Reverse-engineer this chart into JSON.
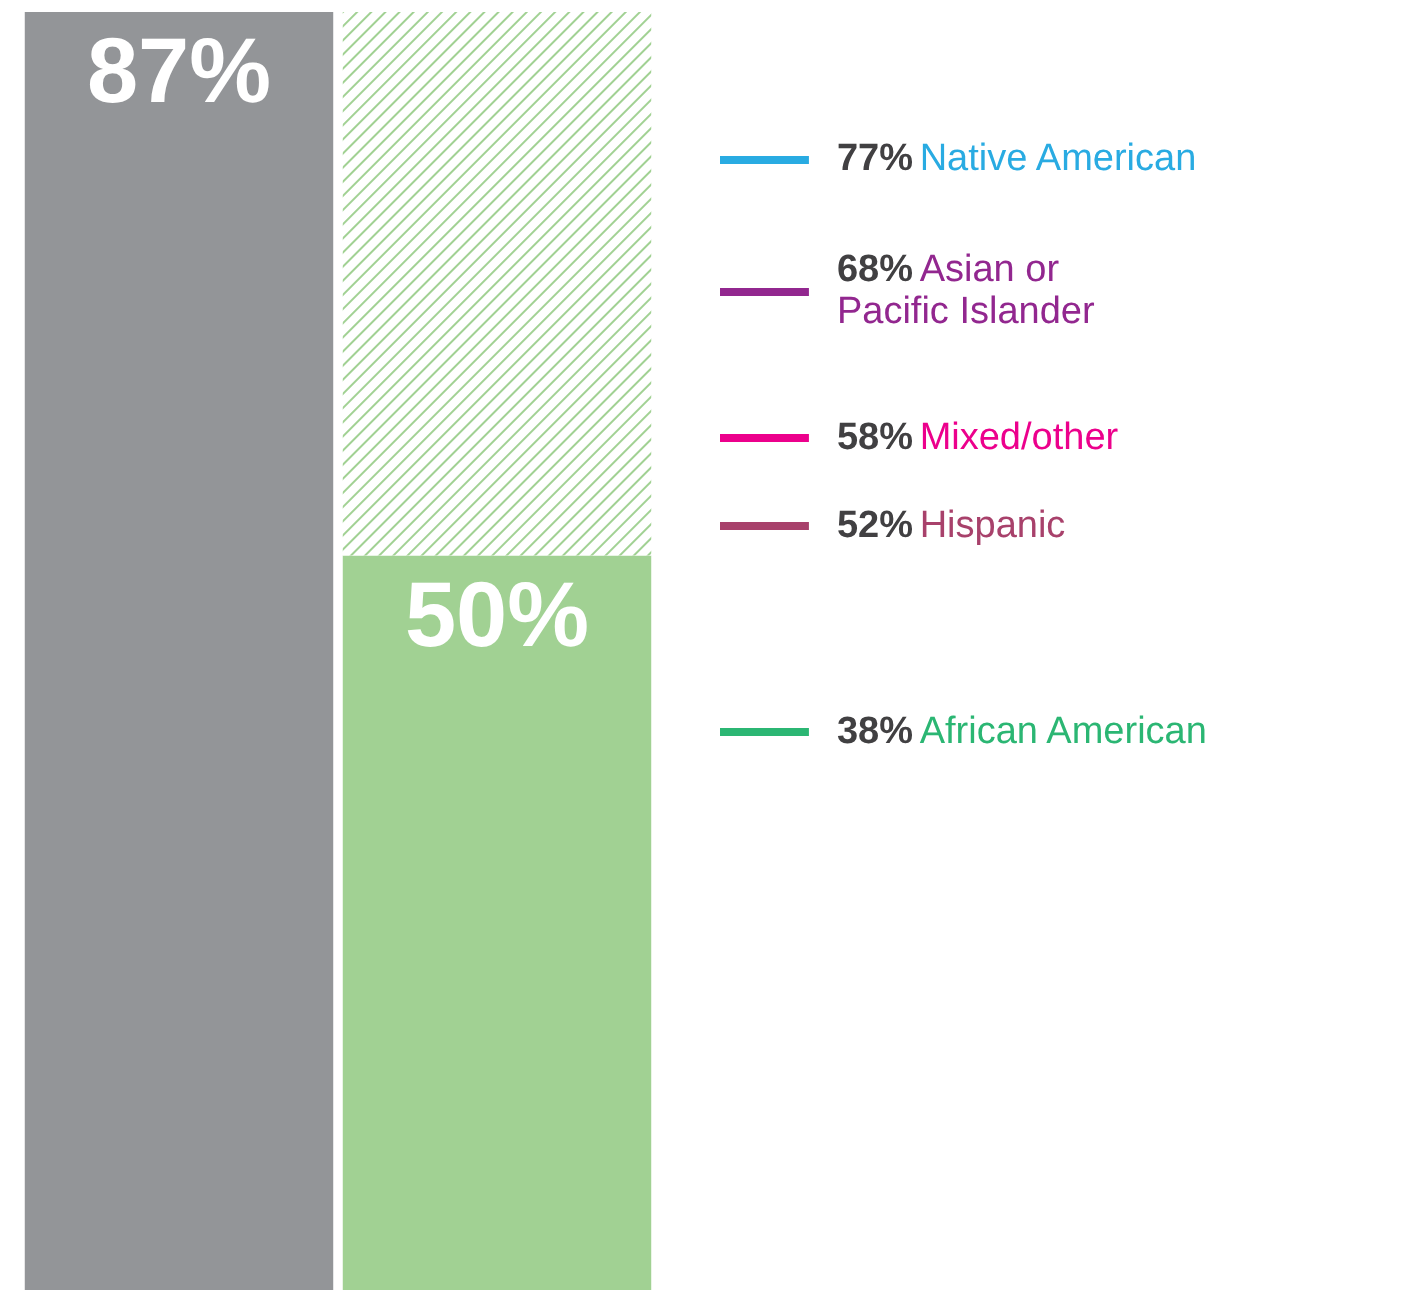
{
  "chart_data": {
    "type": "bar",
    "categories": [
      null,
      null
    ],
    "stacked": true,
    "tick_labels": false,
    "grid": false,
    "series": [
      {
        "colors": [
          "#939598",
          "#a1d193"
        ],
        "values": [
          87,
          50
        ],
        "value_labels": [
          "87%",
          "50%"
        ]
      },
      {
        "color": "#a1d193",
        "values": [
          null,
          37
        ]
      }
    ],
    "ref_lines": [
      {
        "axis": "y",
        "value": 77,
        "label": "77% Native American",
        "color": "#29abe2"
      },
      {
        "axis": "y",
        "value": 68,
        "label": "68% Asian or\nPacific Islander",
        "color": "#92278f"
      },
      {
        "axis": "y",
        "value": 58,
        "label": "58% Mixed/other",
        "color": "#ec008c"
      },
      {
        "axis": "y",
        "value": 52,
        "label": "52% Hispanic",
        "color": "#a8416b"
      },
      {
        "axis": "y",
        "value": 38,
        "label": "38% African American",
        "color": "#2bb673"
      }
    ]
  }
}
